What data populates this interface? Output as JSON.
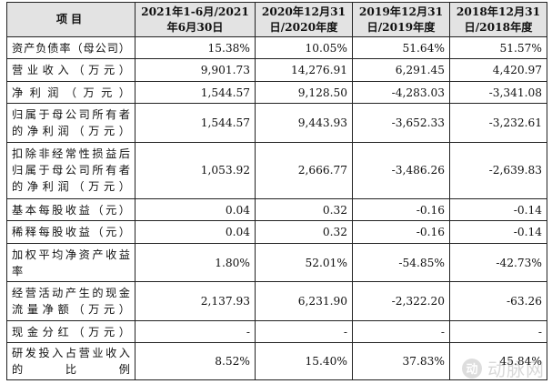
{
  "table": {
    "headers": [
      [
        "项目"
      ],
      [
        "2021年1-6月/2021",
        "年6月30日"
      ],
      [
        "2020年12月31",
        "日/2020年度"
      ],
      [
        "2019年12月31",
        "日/2019年度"
      ],
      [
        "2018年12月31",
        "日/2018年度"
      ]
    ],
    "rows": [
      {
        "label": [
          "资产负债率（母公司）"
        ],
        "values": [
          "15.38%",
          "10.05%",
          "51.64%",
          "51.57%"
        ]
      },
      {
        "label": [
          "营业收入（万元）"
        ],
        "values": [
          "9,901.73",
          "14,276.91",
          "6,291.45",
          "4,420.97"
        ]
      },
      {
        "label": [
          "净利润（万元）"
        ],
        "values": [
          "1,544.57",
          "9,128.50",
          "-4,283.03",
          "-3,341.08"
        ]
      },
      {
        "label": [
          "归属于母公司所有者",
          "的净利润（万元）"
        ],
        "values": [
          "1,544.57",
          "9,443.93",
          "-3,652.33",
          "-3,232.61"
        ]
      },
      {
        "label": [
          "扣除非经常性损益后",
          "归属于母公司所有者",
          "的净利润（万元）"
        ],
        "values": [
          "1,053.92",
          "2,666.77",
          "-3,486.26",
          "-2,639.83"
        ]
      },
      {
        "label": [
          "基本每股收益（元）"
        ],
        "values": [
          "0.04",
          "0.32",
          "-0.16",
          "-0.14"
        ]
      },
      {
        "label": [
          "稀释每股收益（元）"
        ],
        "values": [
          "0.04",
          "0.32",
          "-0.16",
          "-0.14"
        ]
      },
      {
        "label": [
          "加权平均净资产收益",
          "率"
        ],
        "values": [
          "1.80%",
          "52.01%",
          "-54.85%",
          "-42.73%"
        ]
      },
      {
        "label": [
          "经营活动产生的现金",
          "流量净额（万元）"
        ],
        "values": [
          "2,137.93",
          "6,231.90",
          "-2,322.20",
          "-63.26"
        ]
      },
      {
        "label": [
          "现金分红（万元）"
        ],
        "values": [
          "-",
          "-",
          "-",
          "-"
        ]
      },
      {
        "label": [
          "研发投入占营业收入",
          "的比例"
        ],
        "values": [
          "8.52%",
          "15.40%",
          "37.83%",
          "45.84%"
        ]
      }
    ]
  },
  "watermark": {
    "logo": "动",
    "text": "动脉网"
  }
}
